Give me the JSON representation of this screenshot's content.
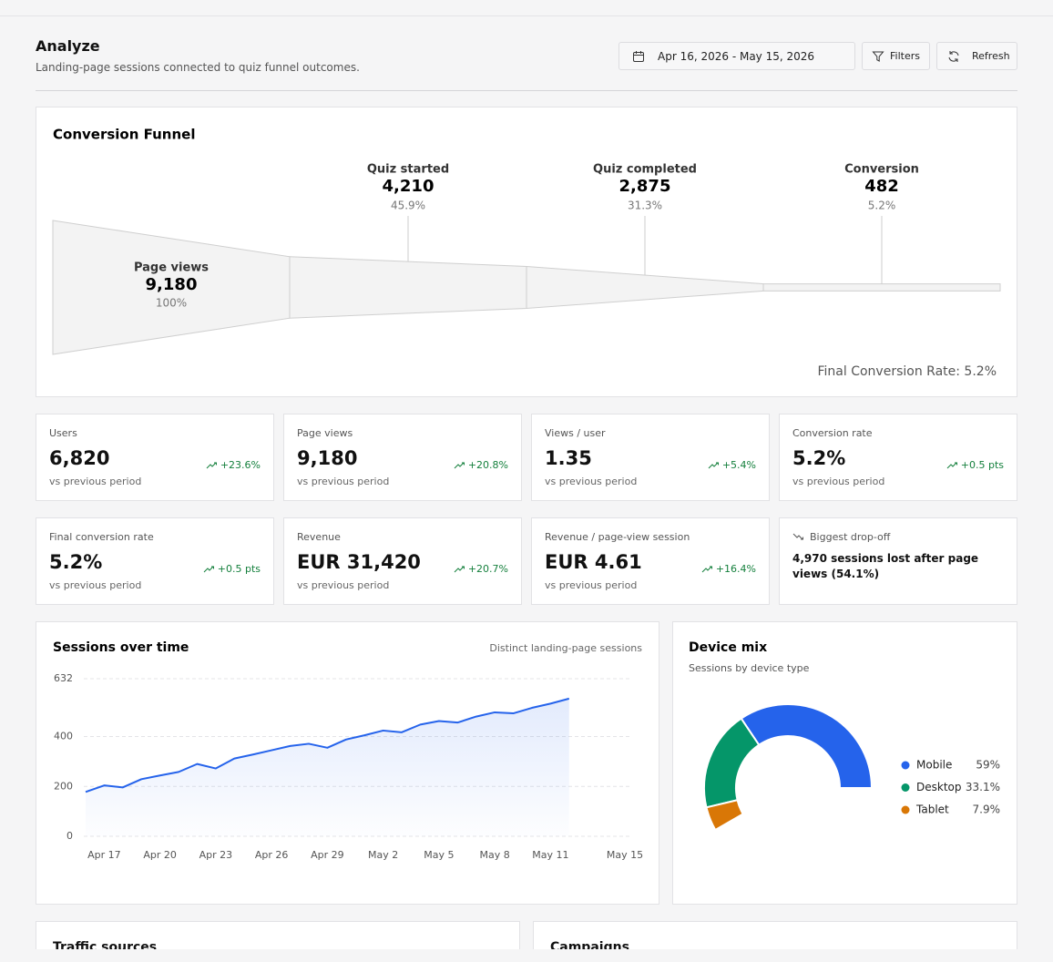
{
  "header": {
    "title": "Analyze",
    "subtitle": "Landing-page sessions connected to quiz funnel outcomes.",
    "date_range": "Apr 16, 2026 - May 15, 2026",
    "filters": "Filters",
    "refresh": "Refresh"
  },
  "kpis": [
    {
      "label": "Users",
      "value": "6,820",
      "change": "+23.6%",
      "note": "vs previous period"
    },
    {
      "label": "Page views",
      "value": "9,180",
      "change": "+20.8%",
      "note": "vs previous period"
    },
    {
      "label": "Views / user",
      "value": "1.35",
      "change": "+5.4%",
      "note": "vs previous period"
    },
    {
      "label": "Conversion rate",
      "value": "5.2%",
      "change": "+0.5 pts",
      "note": "vs previous period"
    },
    {
      "label": "Final conversion rate",
      "value": "5.2%",
      "change": "+0.5 pts",
      "note": "vs previous period"
    },
    {
      "label": "Revenue",
      "value": "EUR 31,420",
      "change": "+20.7%",
      "note": "vs previous period"
    },
    {
      "label": "Revenue / page-view session",
      "value": "EUR 4.61",
      "change": "+16.4%",
      "note": "vs previous period"
    }
  ],
  "drop_off": {
    "label": "Biggest drop-off",
    "text": "4,970 sessions lost after page views (54.1%)"
  },
  "bottom": {
    "left_title": "Traffic sources",
    "right_title": "Campaigns"
  },
  "chart_data": [
    {
      "type": "funnel",
      "title": "Conversion Funnel",
      "categories": [
        "Page views",
        "Quiz started",
        "Quiz completed",
        "Conversion"
      ],
      "values": [
        9180,
        4210,
        2875,
        482
      ],
      "value_labels": [
        "9,180",
        "4,210",
        "2,875",
        "482"
      ],
      "percent_labels": [
        "100%",
        "45.9%",
        "31.3%",
        "5.2%"
      ],
      "annotation": "Final Conversion Rate: 5.2%",
      "color": "#f3f3f3"
    },
    {
      "type": "line",
      "title": "Sessions over time",
      "subtitle": "Distinct landing-page sessions",
      "categories": [
        null,
        "Apr 17",
        null,
        null,
        "Apr 20",
        null,
        null,
        "Apr 23",
        null,
        null,
        "Apr 26",
        null,
        null,
        "Apr 29",
        null,
        null,
        "May 2",
        null,
        null,
        "May 5",
        null,
        null,
        "May 8",
        null,
        null,
        "May 11",
        null,
        null,
        null,
        "May 15"
      ],
      "values": [
        178,
        204,
        196,
        229,
        244,
        258,
        290,
        272,
        312,
        328,
        345,
        362,
        371,
        355,
        388,
        405,
        424,
        417,
        448,
        462,
        456,
        480,
        497,
        493,
        515,
        532,
        552,
        null,
        null,
        null
      ],
      "color": "#2563eb",
      "ylim": [
        0,
        632
      ],
      "yticks": [
        0,
        200,
        400,
        632
      ],
      "grid": true
    },
    {
      "type": "pie",
      "title": "Device mix",
      "subtitle": "Sessions by device type",
      "donut": true,
      "categories": [
        "Mobile",
        "Desktop",
        "Tablet"
      ],
      "values": [
        59,
        33.1,
        7.9
      ],
      "value_labels": [
        "59%",
        "33.1%",
        "7.9%"
      ],
      "colors": [
        "#2563eb",
        "#059669",
        "#d97706"
      ]
    }
  ]
}
